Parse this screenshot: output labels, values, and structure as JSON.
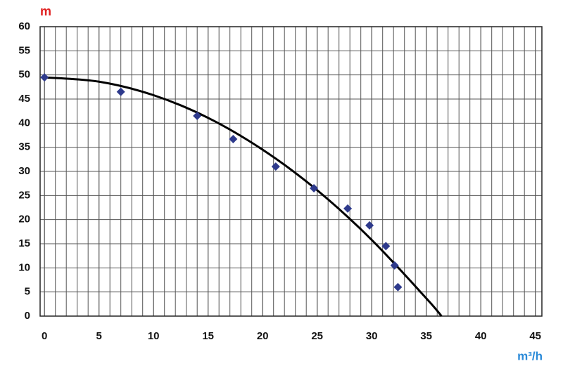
{
  "chart_data": {
    "type": "scatter",
    "y_label": "m",
    "x_label": "m³/h",
    "y_label_color": "#e02020",
    "x_label_color": "#2a8ad8",
    "xlim": [
      -0.4,
      45.6
    ],
    "ylim": [
      0,
      60
    ],
    "xticks": [
      0,
      5,
      10,
      15,
      20,
      25,
      30,
      35,
      40,
      45
    ],
    "yticks": [
      0,
      5,
      10,
      15,
      20,
      25,
      30,
      35,
      40,
      45,
      50,
      55,
      60
    ],
    "grid": true,
    "x_minor_step": 1,
    "series": [
      {
        "type": "scatter",
        "color": "#2e3a8c",
        "x": [
          0,
          7,
          14,
          17.3,
          21.2,
          24.7,
          27.8,
          29.8,
          31.3,
          32.1,
          32.4
        ],
        "values": [
          49.5,
          46.5,
          41.5,
          36.7,
          31,
          26.5,
          22.3,
          18.8,
          14.5,
          10.5,
          6
        ]
      },
      {
        "type": "line",
        "color": "#000000",
        "x": [
          0,
          5,
          10,
          15,
          20,
          25,
          30,
          35,
          36.4
        ],
        "values": [
          49.5,
          48.6,
          45.8,
          41.1,
          34.5,
          26.1,
          15.8,
          3.7,
          0
        ]
      }
    ]
  }
}
